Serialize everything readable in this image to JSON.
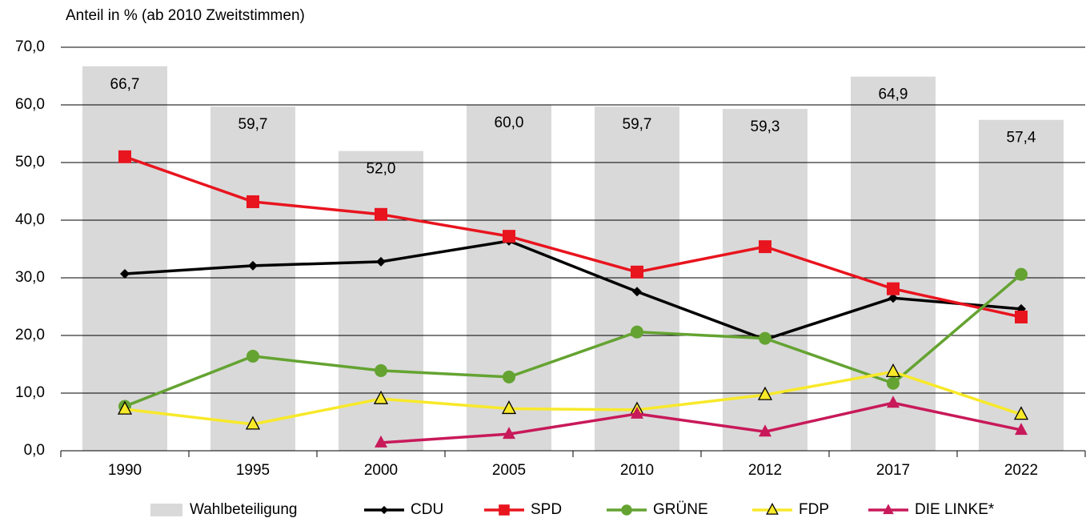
{
  "chart_data": {
    "type": "combo",
    "y_axis_title": "Anteil in % (ab 2010 Zweitstimmen)",
    "categories": [
      "1990",
      "1995",
      "2000",
      "2005",
      "2010",
      "2012",
      "2017",
      "2022"
    ],
    "ylim": [
      0,
      70
    ],
    "yticks": [
      {
        "value": 0,
        "label": "0,0"
      },
      {
        "value": 10,
        "label": "10,0"
      },
      {
        "value": 20,
        "label": "20,0"
      },
      {
        "value": 30,
        "label": "30,0"
      },
      {
        "value": 40,
        "label": "40,0"
      },
      {
        "value": 50,
        "label": "50,0"
      },
      {
        "value": 60,
        "label": "60,0"
      },
      {
        "value": 70,
        "label": "70,0"
      }
    ],
    "grid": true,
    "legend": "bottom",
    "series": [
      {
        "name": "Wahlbeteiligung",
        "type": "bar",
        "color": "#d9d9d9",
        "values": [
          66.7,
          59.7,
          52.0,
          60.0,
          59.7,
          59.3,
          64.9,
          57.4
        ],
        "value_labels": [
          "66,7",
          "59,7",
          "52,0",
          "60,0",
          "59,7",
          "59,3",
          "64,9",
          "57,4"
        ]
      },
      {
        "name": "CDU",
        "type": "line",
        "color": "#000000",
        "marker": "diamond",
        "values": [
          30.7,
          32.1,
          32.8,
          36.4,
          27.6,
          19.3,
          26.5,
          24.6
        ]
      },
      {
        "name": "SPD",
        "type": "line",
        "color": "#e8141e",
        "marker": "square",
        "values": [
          51.0,
          43.2,
          41.0,
          37.2,
          31.0,
          35.4,
          28.1,
          23.2
        ]
      },
      {
        "name": "GRÜNE",
        "type": "line",
        "color": "#64a331",
        "marker": "circle",
        "values": [
          7.7,
          16.4,
          13.9,
          12.8,
          20.6,
          19.5,
          11.7,
          30.6
        ]
      },
      {
        "name": "FDP",
        "type": "line",
        "color": "#f7e92a",
        "marker": "triangle-outline",
        "values": [
          7.2,
          4.6,
          9.0,
          7.3,
          7.1,
          9.7,
          13.7,
          6.3
        ]
      },
      {
        "name": "DIE LINKE*",
        "type": "line",
        "color": "#c8195a",
        "marker": "triangle",
        "values": [
          null,
          null,
          1.4,
          2.9,
          6.4,
          3.3,
          8.3,
          3.6
        ]
      }
    ]
  }
}
